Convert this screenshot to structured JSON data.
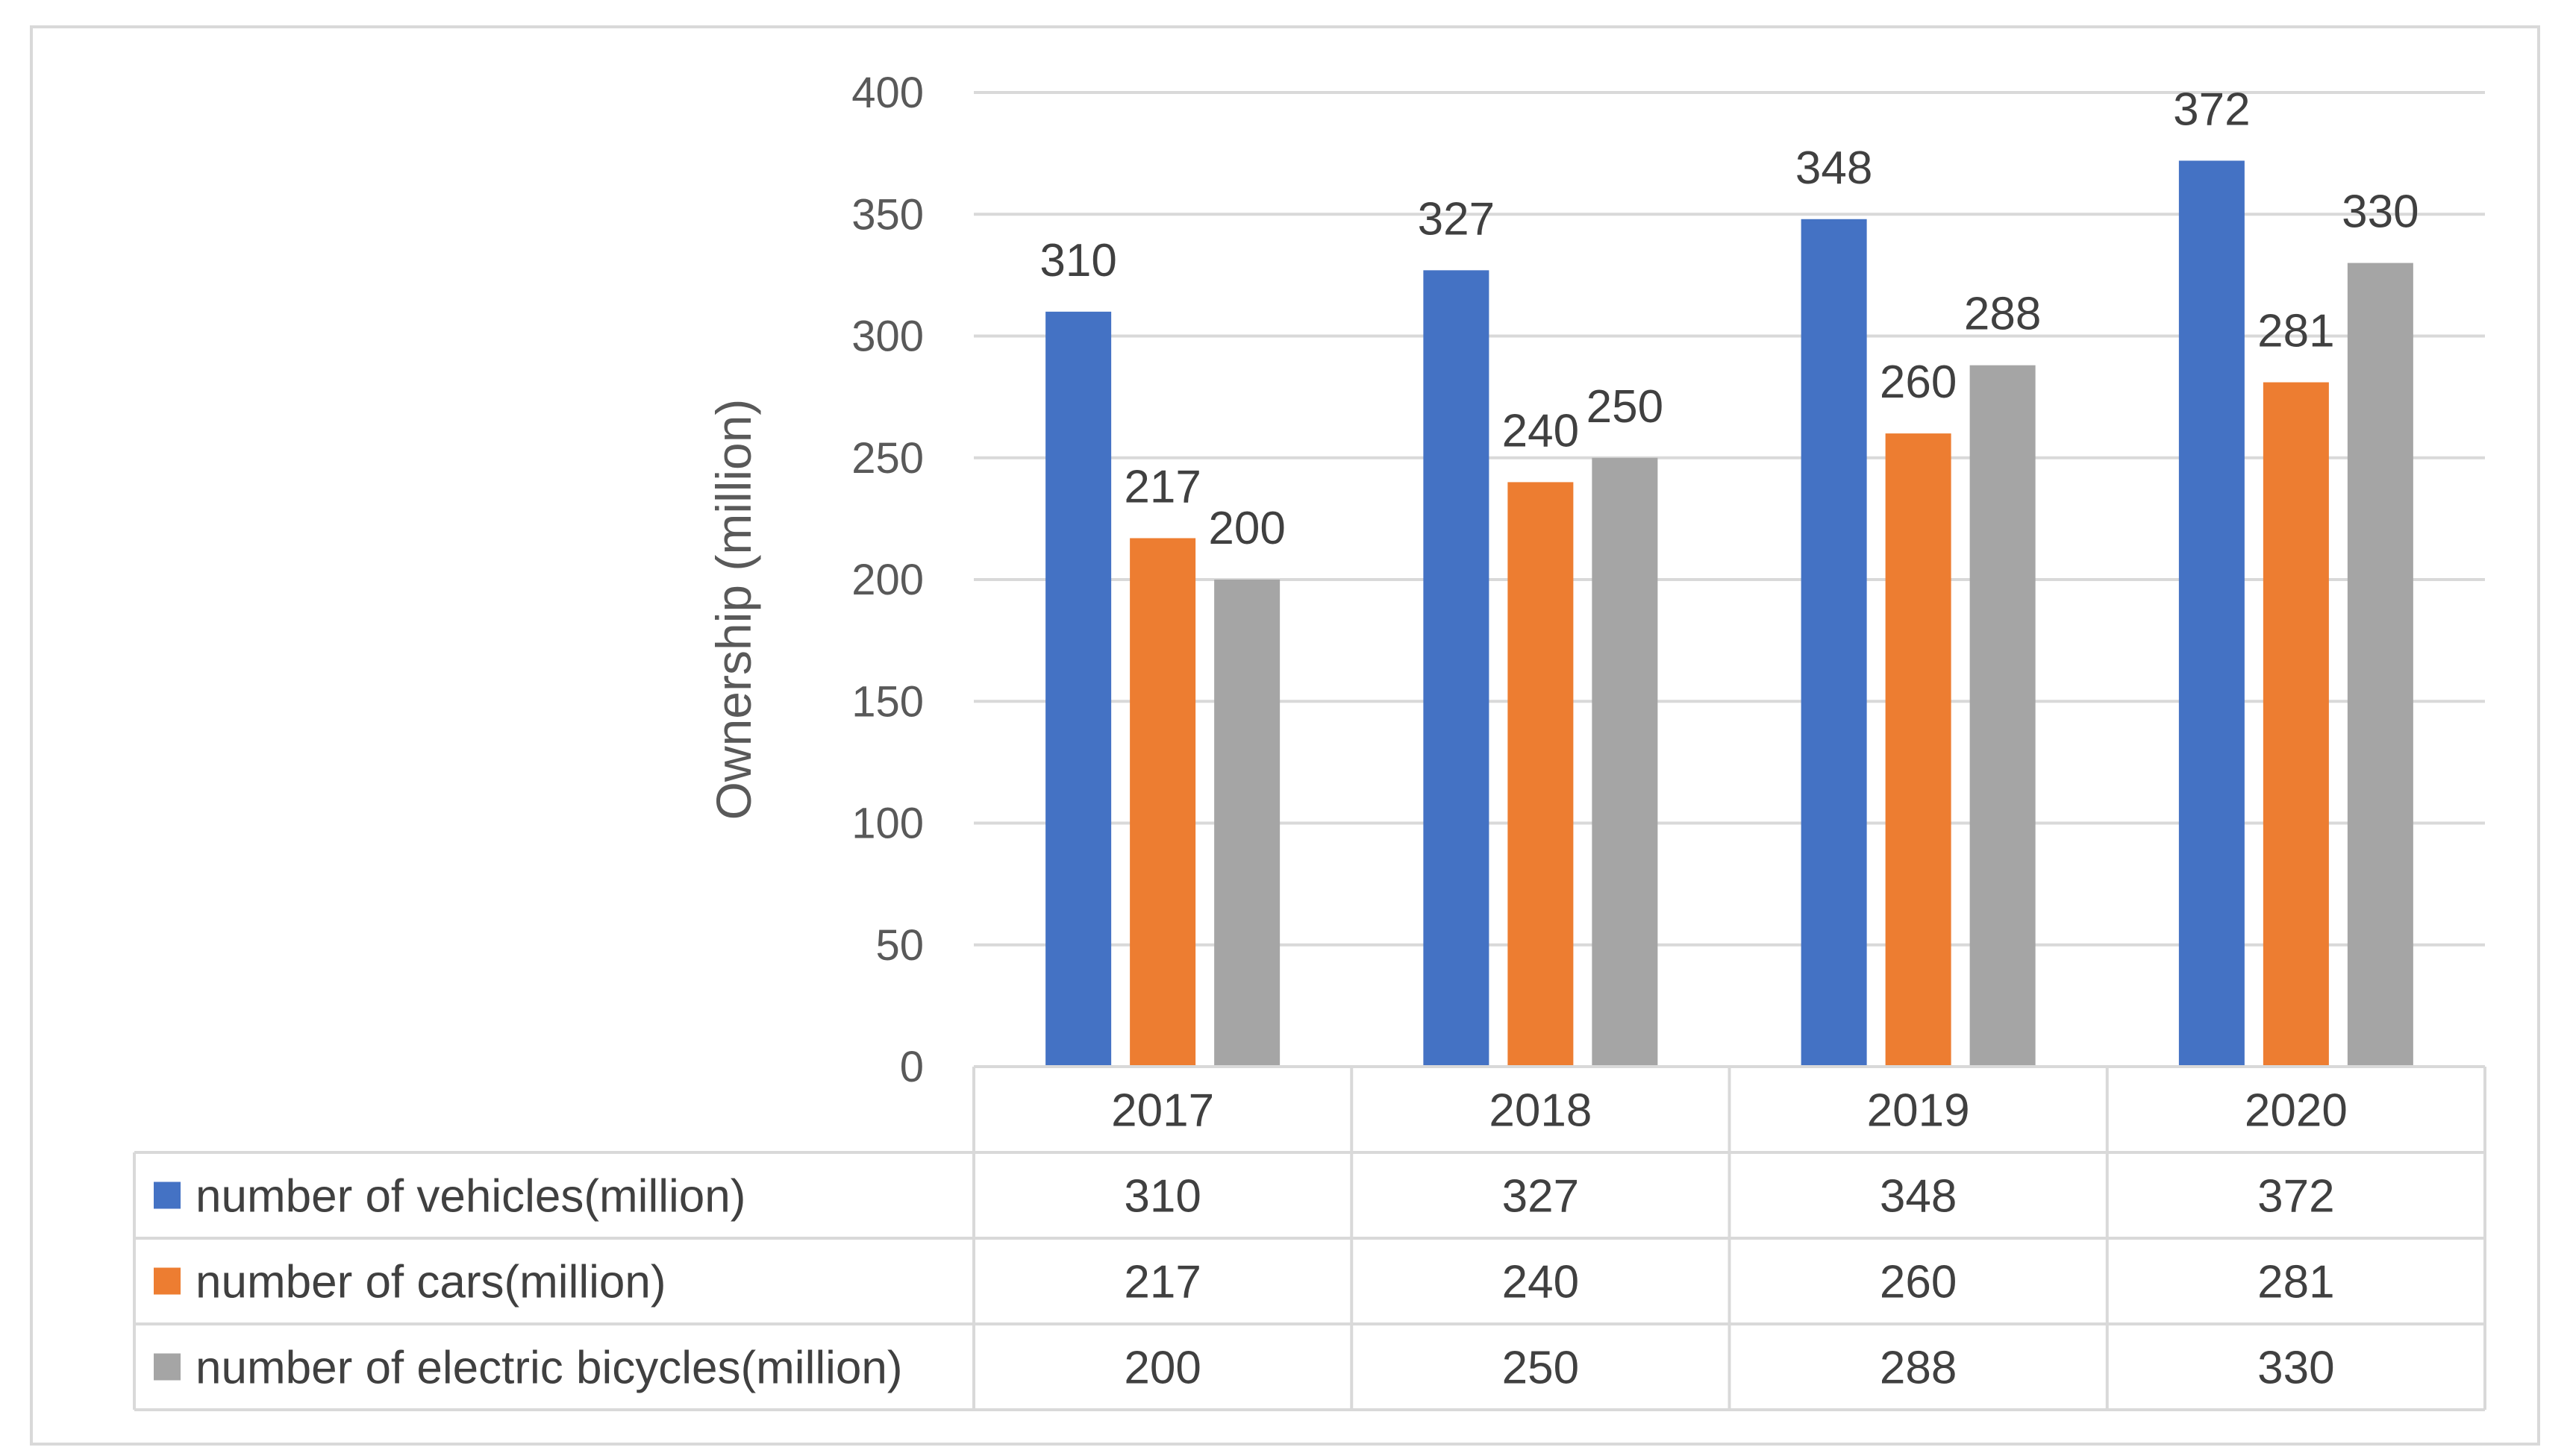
{
  "chart_data": {
    "type": "bar",
    "title": "",
    "xlabel": "",
    "ylabel": "Ownership (million)",
    "ylim": [
      0,
      400
    ],
    "yticks": [
      0,
      50,
      100,
      150,
      200,
      250,
      300,
      350,
      400
    ],
    "grid": true,
    "legend": "data-table-bottom",
    "categories": [
      "2017",
      "2018",
      "2019",
      "2020"
    ],
    "series": [
      {
        "name": "number of vehicles(million)",
        "color": "#4472C4",
        "values": [
          310,
          327,
          348,
          372
        ]
      },
      {
        "name": "number of cars(million)",
        "color": "#ED7D31",
        "values": [
          217,
          240,
          260,
          281
        ]
      },
      {
        "name": "number of electric bicycles(million)",
        "color": "#A5A5A5",
        "values": [
          200,
          250,
          288,
          330
        ]
      }
    ]
  }
}
